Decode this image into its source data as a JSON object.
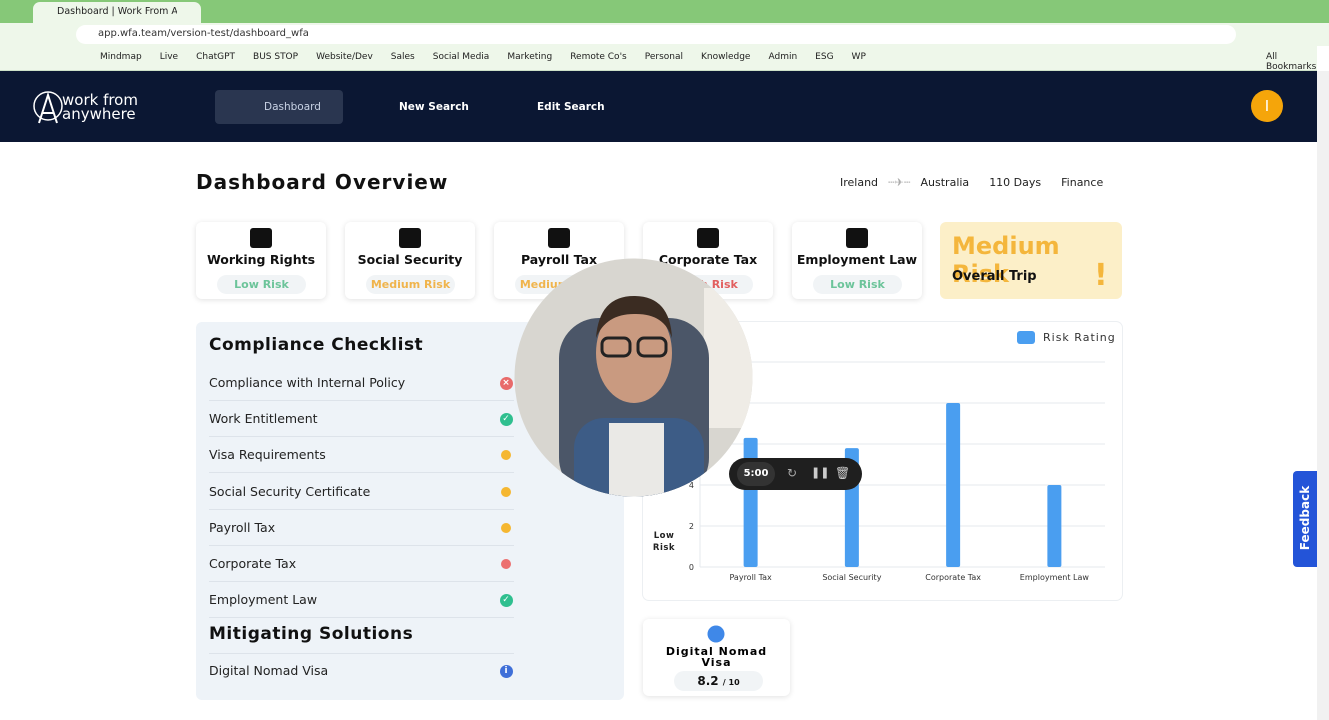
{
  "browser": {
    "tab_title": "Dashboard | Work From Any",
    "url": "app.wfa.team/version-test/dashboard_wfa",
    "bookmarks": [
      "Mindmap",
      "Live",
      "ChatGPT",
      "BUS STOP",
      "Website/Dev",
      "Sales",
      "Social Media",
      "Marketing",
      "Remote Co's",
      "Personal",
      "Knowledge",
      "Admin",
      "ESG",
      "WP"
    ],
    "all_bookmarks": "All Bookmarks"
  },
  "nav": {
    "logo": [
      "work from",
      "anywhere"
    ],
    "items": [
      "Dashboard",
      "New Search",
      "Edit Search"
    ],
    "avatar": "I"
  },
  "header": {
    "title": "Dashboard Overview",
    "from": "Ireland",
    "to": "Australia",
    "duration": "110 Days",
    "sector": "Finance"
  },
  "risk_cards": [
    {
      "title": "Working Rights",
      "risk": "Low Risk",
      "color": "#6cc49a"
    },
    {
      "title": "Social Security",
      "risk": "Medium Risk",
      "color": "#f0b44c"
    },
    {
      "title": "Payroll Tax",
      "risk": "Medium Risk",
      "color": "#f0b44c"
    },
    {
      "title": "Corporate Tax",
      "risk": "High Risk",
      "color": "#e25f5f"
    },
    {
      "title": "Employment Law",
      "risk": "Low Risk",
      "color": "#6cc49a"
    }
  ],
  "overall": {
    "risk": "Medium Risk",
    "label": "Overall Trip",
    "icon": "!"
  },
  "checklist": {
    "title": "Compliance Checklist",
    "items": [
      {
        "label": "Compliance with Internal Policy",
        "color": "#e86a6a",
        "icon": "cross"
      },
      {
        "label": "Work Entitlement",
        "color": "#2fbf8f",
        "icon": "check"
      },
      {
        "label": "Visa Requirements",
        "color": "#f5b731",
        "icon": "dot"
      },
      {
        "label": "Social Security Certificate",
        "color": "#f5b731",
        "icon": "dot"
      },
      {
        "label": "Payroll Tax",
        "color": "#f5b731",
        "icon": "dot"
      },
      {
        "label": "Corporate Tax",
        "color": "#ec6f6f",
        "icon": "dot"
      },
      {
        "label": "Employment Law",
        "color": "#2fbf8f",
        "icon": "check"
      }
    ]
  },
  "mitigating": {
    "title": "Mitigating Solutions",
    "items": [
      {
        "label": "Digital Nomad Visa",
        "color": "#3f6fd8",
        "icon": "info"
      }
    ]
  },
  "risk_chart": {
    "type": "bar",
    "legend": "Risk Rating",
    "y_label": "Low Risk",
    "categories": [
      "Payroll Tax",
      "Social Security",
      "Corporate Tax",
      "Employment Law"
    ],
    "values": [
      6.3,
      5.8,
      8,
      4
    ],
    "color": "#4a9ef0",
    "ylim": [
      0,
      10
    ],
    "yticks": [
      0,
      2,
      4,
      6,
      8,
      10
    ],
    "grid": true
  },
  "score_card": {
    "title": "Digital Nomad Visa",
    "score": 8.2,
    "out_of": "/ 10"
  },
  "video": {
    "time": "5:00"
  },
  "feedback": "Feedback"
}
